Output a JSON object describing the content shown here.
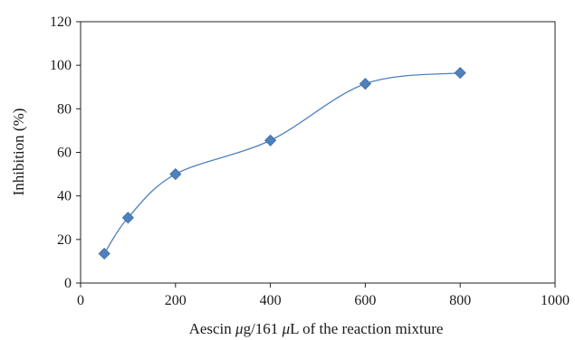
{
  "chart_data": {
    "type": "scatter",
    "xlabel_parts": [
      "Aescin ",
      "μ",
      "g/161 ",
      "μ",
      "L of the reaction mixture"
    ],
    "ylabel": "Inhibition (%)",
    "xlim": [
      0,
      1000
    ],
    "ylim": [
      0,
      120
    ],
    "xticks": [
      0,
      200,
      400,
      600,
      800,
      1000
    ],
    "yticks": [
      0,
      20,
      40,
      60,
      80,
      100,
      120
    ],
    "grid": false,
    "smooth_line": true,
    "marker": "diamond",
    "color": "#4f81bd",
    "series": [
      {
        "x": [
          50,
          100,
          200,
          400,
          600,
          800
        ],
        "y": [
          13.5,
          30,
          50,
          65.5,
          91.5,
          96.5
        ]
      }
    ]
  }
}
